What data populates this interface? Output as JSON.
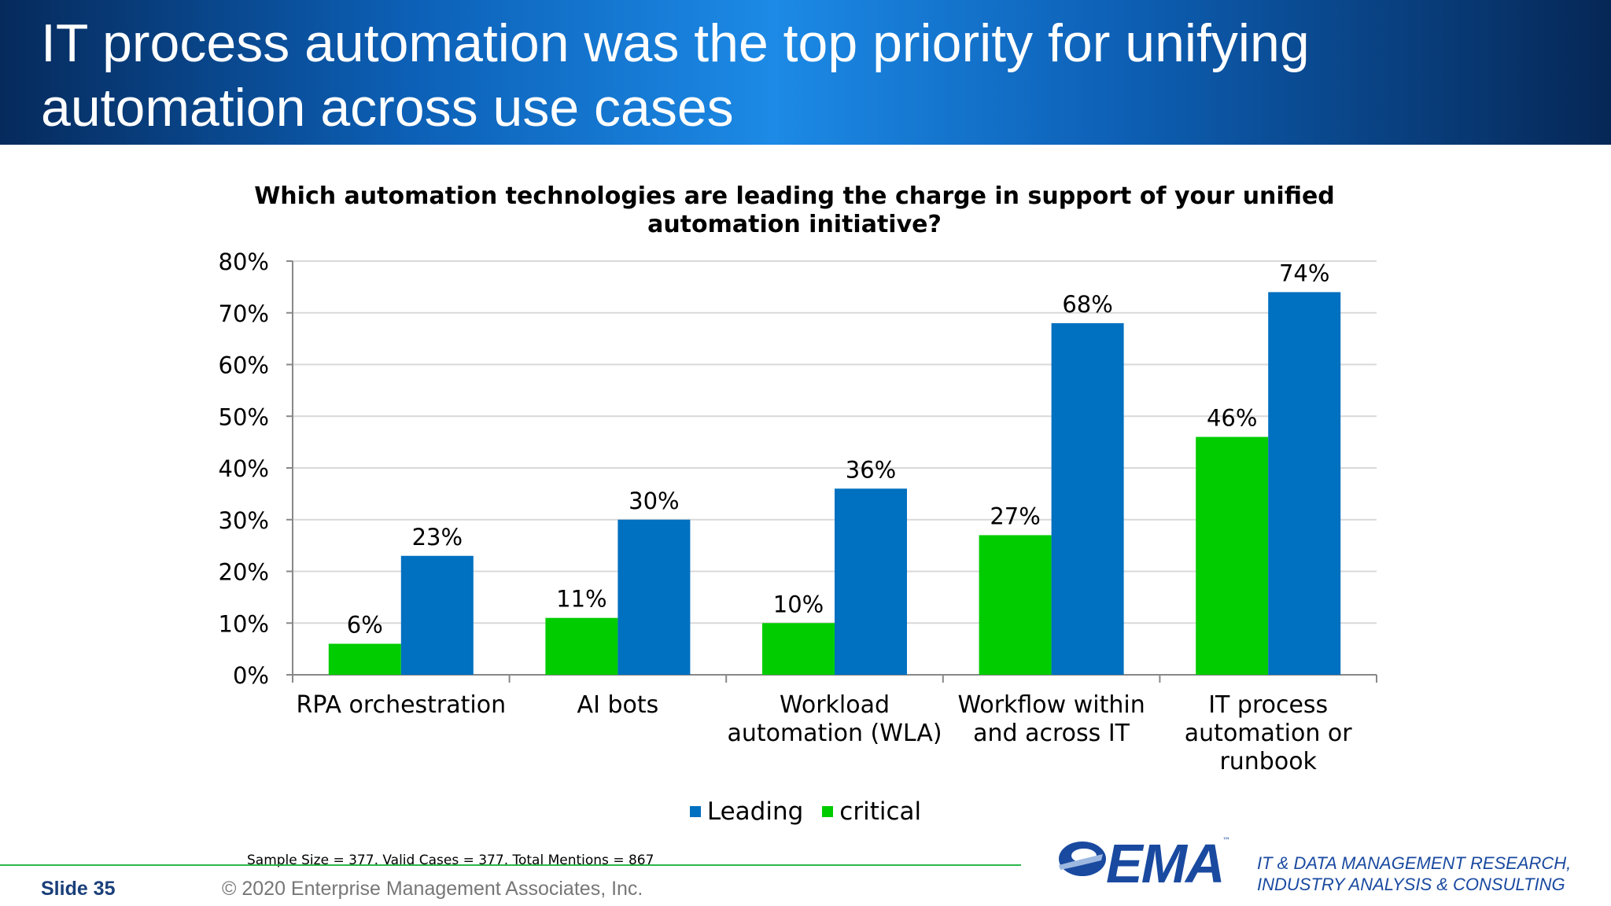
{
  "slide": {
    "title": "IT process automation was the top priority for unifying automation across use cases",
    "sample_note": "Sample Size = 377, Valid Cases = 377, Total Mentions = 867",
    "slide_label": "Slide  35",
    "copyright": "© 2020 Enterprise Management Associates, Inc.",
    "logo_text": "EMA",
    "logo_tm": "™",
    "tagline_1": "IT & DATA MANAGEMENT RESEARCH,",
    "tagline_2": "INDUSTRY ANALYSIS & CONSULTING"
  },
  "chart_data": {
    "type": "bar",
    "title": "Which automation technologies are leading the charge in support of your unified automation initiative?",
    "categories": [
      [
        "RPA orchestration"
      ],
      [
        "AI bots"
      ],
      [
        "Workload",
        "automation (WLA)"
      ],
      [
        "Workflow within",
        "and across IT"
      ],
      [
        "IT process",
        "automation or",
        "runbook"
      ]
    ],
    "series": [
      {
        "name": "critical",
        "color": "#00cc00",
        "values": [
          6,
          11,
          10,
          27,
          46
        ],
        "labels": [
          "6%",
          "11%",
          "10%",
          "27%",
          "46%"
        ]
      },
      {
        "name": "Leading",
        "color": "#0070c0",
        "values": [
          23,
          30,
          36,
          68,
          74
        ],
        "labels": [
          "23%",
          "30%",
          "36%",
          "68%",
          "74%"
        ]
      }
    ],
    "legend_order": [
      "Leading",
      "critical"
    ],
    "legend_placement": "bottom",
    "ylim": [
      0,
      80
    ],
    "yticks": [
      0,
      10,
      20,
      30,
      40,
      50,
      60,
      70,
      80
    ],
    "ytick_labels": [
      "0%",
      "10%",
      "20%",
      "30%",
      "40%",
      "50%",
      "60%",
      "70%",
      "80%"
    ],
    "grid": true,
    "xlabel": "",
    "ylabel": ""
  }
}
